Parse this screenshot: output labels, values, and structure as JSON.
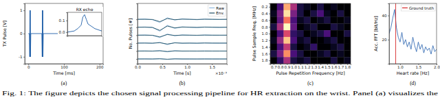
{
  "chart_data": [
    {
      "type": "line",
      "subtitle": "(a)",
      "x_label": "Time [ms]",
      "y_label": "TX Pulse [V]",
      "x": [
        0,
        3,
        4,
        4.5,
        5,
        5.5,
        6,
        7,
        38,
        39,
        39.5,
        40,
        40.5,
        41,
        42,
        200
      ],
      "series": [
        {
          "color": "#1f5fa8",
          "values": [
            0,
            0,
            -1,
            1,
            -1,
            1,
            -1,
            0,
            0,
            -1,
            1,
            -1,
            1,
            -1,
            0,
            0
          ]
        }
      ],
      "xlim": [
        -10,
        210
      ],
      "xticks": [
        0,
        100,
        200
      ],
      "ylim": [
        -1.3,
        1.3
      ],
      "yticks": [
        -1,
        0,
        1
      ]
    },
    {
      "type": "line",
      "title": "RX echo",
      "x": [
        0,
        2,
        4,
        6,
        8,
        9,
        10,
        11,
        12,
        14,
        16,
        18,
        20
      ],
      "series": [
        {
          "color": "#1f5fa8",
          "values": [
            0,
            0.005,
            0.01,
            0.03,
            0.06,
            0.13,
            0.15,
            0.11,
            0.07,
            0.05,
            0.03,
            0.02,
            0.01
          ]
        }
      ],
      "xlim": [
        0,
        20
      ],
      "ylim": [
        -0.03,
        0.17
      ],
      "yticks": [
        {
          "value": 0,
          "label": "0.0"
        },
        0.1
      ],
      "tick_labels": "y"
    },
    {
      "type": "line",
      "subtitle": "(b)",
      "x_label": "Time [s]",
      "y_label": "No. Pulses [#]",
      "annotations": [
        {
          "text": "×10⁻³"
        }
      ],
      "x": [
        0,
        0.15,
        0.3,
        0.45,
        0.6,
        0.75,
        0.9,
        1.05,
        1.2,
        1.35,
        1.5,
        1.65,
        1.8
      ],
      "series": [
        {
          "name": "Raw",
          "color": "#8fb8de",
          "values": [
            6,
            6.05,
            5.95,
            5.6,
            6.2,
            5.9,
            6.05,
            6,
            5.95,
            6.03,
            6,
            5.98,
            6
          ]
        },
        {
          "name": "Env.",
          "color": "#1d4e63",
          "values": [
            6,
            6,
            5.98,
            5.7,
            6.1,
            5.95,
            6.02,
            6,
            5.98,
            6.01,
            6,
            5.99,
            6
          ]
        },
        {
          "color": "#8fb8de",
          "values": [
            5,
            5.04,
            4.96,
            4.5,
            5.25,
            4.85,
            5.05,
            5,
            4.96,
            5.03,
            5,
            4.98,
            5
          ]
        },
        {
          "color": "#1d4e63",
          "values": [
            5,
            5,
            4.98,
            4.6,
            5.15,
            4.92,
            5.02,
            5,
            4.98,
            5.01,
            5,
            4.99,
            5
          ]
        },
        {
          "color": "#8fb8de",
          "values": [
            4,
            4.03,
            3.97,
            3.7,
            4.15,
            3.92,
            4.03,
            4,
            3.97,
            4.02,
            4,
            3.99,
            4
          ]
        },
        {
          "color": "#1d4e63",
          "values": [
            4,
            4,
            3.99,
            3.78,
            4.08,
            3.96,
            4.01,
            4,
            3.99,
            4.01,
            4,
            4,
            4
          ]
        },
        {
          "color": "#8fb8de",
          "values": [
            3,
            3.03,
            2.97,
            3.1,
            2.8,
            3.06,
            2.98,
            3,
            2.98,
            3.02,
            3,
            2.99,
            3
          ]
        },
        {
          "color": "#1d4e63",
          "values": [
            3,
            3,
            2.99,
            3.05,
            2.88,
            3.03,
            2.99,
            3,
            2.99,
            3.01,
            3,
            3,
            3
          ]
        },
        {
          "color": "#8fb8de",
          "values": [
            2,
            2.02,
            1.98,
            2.06,
            1.9,
            2.04,
            1.99,
            2,
            1.99,
            2.01,
            2,
            2,
            2
          ]
        },
        {
          "color": "#1d4e63",
          "values": [
            2,
            2,
            2,
            2.03,
            1.94,
            2.02,
            2,
            2,
            2,
            2,
            2,
            2,
            2
          ]
        },
        {
          "color": "#8fb8de",
          "values": [
            1,
            1.02,
            0.99,
            1.04,
            0.95,
            1.02,
            1,
            1,
            0.99,
            1.01,
            1,
            1,
            1
          ]
        },
        {
          "color": "#1d4e63",
          "values": [
            1,
            1,
            1,
            1.02,
            0.97,
            1.01,
            1,
            1,
            1,
            1,
            1,
            1,
            1
          ]
        }
      ],
      "xlim": [
        0,
        1.8
      ],
      "xticks": [
        {
          "value": 0,
          "label": "0.0"
        },
        0.5,
        {
          "value": 1,
          "label": "1.0"
        },
        1.5
      ],
      "ylim": [
        0.4,
        8
      ],
      "yticks": [
        1,
        2,
        3,
        4,
        5,
        6
      ],
      "tick_labels": "x",
      "legend": "upper right"
    },
    {
      "type": "heatmap",
      "subtitle": "(c)",
      "x_label": "Pulse Repetition Frequency [Hz]",
      "y_label": "Pulse Sample Freq. [MHz]",
      "x": [
        0.7,
        0.8,
        0.9,
        1,
        1.1,
        1.2,
        1.3,
        1.4,
        1.5,
        1.6,
        1.7,
        1.8
      ],
      "y": [
        0.2,
        0.4,
        0.6,
        0.8,
        1,
        1.2,
        1.4,
        1.6,
        1.8
      ],
      "cells": [
        [
          0.1,
          0.3,
          0.8,
          0.5,
          0.2,
          0.15,
          0.1,
          0.2,
          0.1,
          0.15,
          0.1,
          0.1
        ],
        [
          0.15,
          0.4,
          0.9,
          0.4,
          0.2,
          0.1,
          0.2,
          0.3,
          0.15,
          0.1,
          0.2,
          0.1
        ],
        [
          0.1,
          0.35,
          0.7,
          0.3,
          0.15,
          0.2,
          0.1,
          0.15,
          0.2,
          0.1,
          0.1,
          0.15
        ],
        [
          0.2,
          0.5,
          0.95,
          0.35,
          0.1,
          0.15,
          0.2,
          0.1,
          0.1,
          0.2,
          0.15,
          0.1
        ],
        [
          0.1,
          0.3,
          0.6,
          0.25,
          0.2,
          0.1,
          0.15,
          0.2,
          0.3,
          0.1,
          0.1,
          0.2
        ],
        [
          0.15,
          0.45,
          0.85,
          0.3,
          0.15,
          0.2,
          0.1,
          0.1,
          0.15,
          0.2,
          0.1,
          0.1
        ],
        [
          0.1,
          0.3,
          0.55,
          0.2,
          0.1,
          0.15,
          0.25,
          0.1,
          0.1,
          0.15,
          0.2,
          0.1
        ],
        [
          0.2,
          0.4,
          0.75,
          0.3,
          0.2,
          0.1,
          0.1,
          0.15,
          0.2,
          0.1,
          0.15,
          0.1
        ],
        [
          0.1,
          0.25,
          0.5,
          0.2,
          0.15,
          0.2,
          0.1,
          0.1,
          0.1,
          0.2,
          0.1,
          0.15
        ]
      ],
      "xlim": [
        0.65,
        1.85
      ],
      "xticks": [
        0.7,
        0.8,
        0.9,
        {
          "value": 1,
          "label": "1.0"
        },
        1.1,
        1.2,
        1.3,
        1.4,
        1.5,
        1.6,
        1.7,
        1.8
      ],
      "ylim": [
        0.1,
        1.9
      ],
      "yticks": [
        0.2,
        0.4,
        0.6,
        0.8,
        {
          "value": 1,
          "label": "1.0"
        },
        1.2,
        1.4,
        1.6,
        1.8
      ]
    },
    {
      "type": "line",
      "subtitle": "(d)",
      "x_label": "Heart rate [Hz]",
      "y_label": "Acc. FFT [bit/Hz]",
      "x": [
        0.7,
        0.75,
        0.8,
        0.85,
        0.9,
        0.95,
        1,
        1.05,
        1.1,
        1.15,
        1.2,
        1.25,
        1.3,
        1.35,
        1.4,
        1.45,
        1.5,
        1.55,
        1.6,
        1.65,
        1.7,
        1.75,
        1.8,
        1.85,
        1.9,
        1.95,
        2
      ],
      "series": [
        {
          "color": "#3a6fb5",
          "values": [
            25,
            30,
            38,
            45,
            30,
            22,
            18,
            26,
            16,
            20,
            14,
            18,
            12,
            22,
            15,
            10,
            18,
            12,
            16,
            9,
            14,
            11,
            13,
            8,
            15,
            10,
            12
          ]
        },
        {
          "name": "Ground truth",
          "color": "#d62728",
          "x": [
            0.88,
            0.88
          ],
          "values": [
            0,
            50
          ]
        }
      ],
      "xlim": [
        0.7,
        2
      ],
      "xticks": [
        {
          "value": 1,
          "label": "1.0"
        },
        1.5,
        {
          "value": 2,
          "label": "2.0"
        }
      ],
      "ylim": [
        0,
        50
      ],
      "yticks": [
        20,
        40
      ],
      "legend": "upper right"
    }
  ],
  "caption": "Fig. 1: The figure depicts the chosen signal processing pipeline for HR extraction on the wrist. Panel (a) visualizes the"
}
